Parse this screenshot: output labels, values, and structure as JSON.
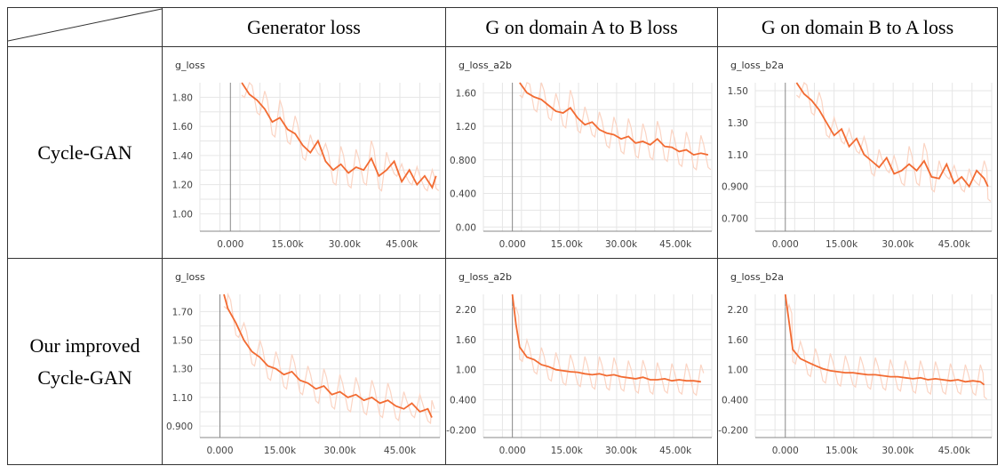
{
  "header": {
    "columns": [
      "Generator loss",
      "G on domain A to B loss",
      "G on domain B to A loss"
    ],
    "rows": [
      [
        "Cycle-GAN"
      ],
      [
        "Our improved",
        "Cycle-GAN"
      ]
    ]
  },
  "colors": {
    "line": "#f26b32",
    "raw": "#fbd4c3",
    "grid": "#e6e6e6",
    "axis": "#888888"
  },
  "chart_data": [
    {
      "type": "line",
      "row": 0,
      "col": 0,
      "title": "g_loss",
      "xticks": [
        "0.000",
        "15.00k",
        "30.00k",
        "45.00k"
      ],
      "xtick_values": [
        0,
        15000,
        30000,
        45000
      ],
      "yticks": [
        "1.80",
        "1.60",
        "1.40",
        "1.20",
        "1.00"
      ],
      "ytick_values": [
        1.8,
        1.6,
        1.4,
        1.2,
        1.0
      ],
      "xlim": [
        -8000,
        55000
      ],
      "ylim": [
        0.88,
        1.9
      ],
      "series": [
        {
          "x": [
            3000,
            5000,
            7000,
            9000,
            11000,
            13000,
            15000,
            17000,
            19000,
            21000,
            23000,
            25000,
            27000,
            29000,
            31000,
            33000,
            35000,
            37000,
            39000,
            41000,
            43000,
            45000,
            47000,
            49000,
            51000,
            53000,
            54000
          ],
          "y": [
            1.9,
            1.82,
            1.78,
            1.72,
            1.63,
            1.66,
            1.58,
            1.55,
            1.47,
            1.42,
            1.5,
            1.36,
            1.3,
            1.34,
            1.28,
            1.32,
            1.3,
            1.38,
            1.26,
            1.3,
            1.36,
            1.22,
            1.3,
            1.2,
            1.26,
            1.18,
            1.26
          ]
        }
      ]
    },
    {
      "type": "line",
      "row": 0,
      "col": 1,
      "title": "g_loss_a2b",
      "xticks": [
        "0.000",
        "15.00k",
        "30.00k",
        "45.00k"
      ],
      "xtick_values": [
        0,
        15000,
        30000,
        45000
      ],
      "yticks": [
        "1.60",
        "1.20",
        "0.800",
        "0.400",
        "0.00"
      ],
      "ytick_values": [
        1.6,
        1.2,
        0.8,
        0.4,
        0.0
      ],
      "xlim": [
        -8000,
        55000
      ],
      "ylim": [
        -0.05,
        1.72
      ],
      "series": [
        {
          "x": [
            2000,
            4000,
            6000,
            8000,
            10000,
            12000,
            14000,
            16000,
            18000,
            20000,
            22000,
            24000,
            26000,
            28000,
            30000,
            32000,
            34000,
            36000,
            38000,
            40000,
            42000,
            44000,
            46000,
            48000,
            50000,
            52000,
            54000
          ],
          "y": [
            1.72,
            1.6,
            1.55,
            1.52,
            1.45,
            1.38,
            1.36,
            1.42,
            1.3,
            1.22,
            1.25,
            1.16,
            1.12,
            1.1,
            1.05,
            1.08,
            1.0,
            1.02,
            0.98,
            1.05,
            0.96,
            0.95,
            0.9,
            0.92,
            0.86,
            0.88,
            0.86
          ]
        }
      ]
    },
    {
      "type": "line",
      "row": 0,
      "col": 2,
      "title": "g_loss_b2a",
      "xticks": [
        "0.000",
        "15.00k",
        "30.00k",
        "45.00k"
      ],
      "xtick_values": [
        0,
        15000,
        30000,
        45000
      ],
      "yticks": [
        "1.50",
        "1.30",
        "1.10",
        "0.900",
        "0.700"
      ],
      "ytick_values": [
        1.5,
        1.3,
        1.1,
        0.9,
        0.7
      ],
      "xlim": [
        -8000,
        55000
      ],
      "ylim": [
        0.62,
        1.55
      ],
      "series": [
        {
          "x": [
            3000,
            5000,
            7000,
            9000,
            11000,
            13000,
            15000,
            17000,
            19000,
            21000,
            23000,
            25000,
            27000,
            29000,
            31000,
            33000,
            35000,
            37000,
            39000,
            41000,
            43000,
            45000,
            47000,
            49000,
            51000,
            53000,
            54000
          ],
          "y": [
            1.55,
            1.48,
            1.44,
            1.38,
            1.3,
            1.22,
            1.26,
            1.15,
            1.2,
            1.1,
            1.06,
            1.02,
            1.08,
            0.98,
            1.0,
            1.04,
            1.0,
            1.06,
            0.96,
            0.95,
            1.04,
            0.92,
            0.96,
            0.9,
            1.0,
            0.95,
            0.9
          ]
        }
      ]
    },
    {
      "type": "line",
      "row": 1,
      "col": 0,
      "title": "g_loss",
      "xticks": [
        "0.000",
        "15.00k",
        "30.00k",
        "45.00k"
      ],
      "xtick_values": [
        0,
        15000,
        30000,
        45000
      ],
      "yticks": [
        "1.70",
        "1.50",
        "1.30",
        "1.10",
        "0.900"
      ],
      "ytick_values": [
        1.7,
        1.5,
        1.3,
        1.1,
        0.9
      ],
      "xlim": [
        -5000,
        55000
      ],
      "ylim": [
        0.82,
        1.82
      ],
      "series": [
        {
          "x": [
            1000,
            2000,
            4000,
            6000,
            8000,
            10000,
            12000,
            14000,
            16000,
            18000,
            20000,
            22000,
            24000,
            26000,
            28000,
            30000,
            32000,
            34000,
            36000,
            38000,
            40000,
            42000,
            44000,
            46000,
            48000,
            50000,
            52000,
            53000
          ],
          "y": [
            1.82,
            1.72,
            1.62,
            1.5,
            1.42,
            1.38,
            1.32,
            1.3,
            1.26,
            1.28,
            1.22,
            1.2,
            1.16,
            1.18,
            1.12,
            1.14,
            1.1,
            1.12,
            1.08,
            1.1,
            1.06,
            1.08,
            1.04,
            1.02,
            1.06,
            1.0,
            1.02,
            0.96
          ]
        }
      ]
    },
    {
      "type": "line",
      "row": 1,
      "col": 1,
      "title": "g_loss_a2b",
      "xticks": [
        "0.000",
        "15.00k",
        "30.00k",
        "45.00k"
      ],
      "xtick_values": [
        0,
        15000,
        30000,
        45000
      ],
      "yticks": [
        "2.20",
        "1.60",
        "1.00",
        "0.400",
        "-0.200"
      ],
      "ytick_values": [
        2.2,
        1.6,
        1.0,
        0.4,
        -0.2
      ],
      "xlim": [
        -8000,
        55000
      ],
      "ylim": [
        -0.35,
        2.5
      ],
      "series": [
        {
          "x": [
            0,
            1000,
            2000,
            4000,
            6000,
            8000,
            10000,
            12000,
            14000,
            16000,
            18000,
            20000,
            22000,
            24000,
            26000,
            28000,
            30000,
            32000,
            34000,
            36000,
            38000,
            40000,
            42000,
            44000,
            46000,
            48000,
            50000,
            52000
          ],
          "y": [
            2.5,
            1.9,
            1.45,
            1.25,
            1.2,
            1.1,
            1.06,
            1.0,
            0.98,
            0.96,
            0.95,
            0.92,
            0.9,
            0.92,
            0.88,
            0.9,
            0.86,
            0.84,
            0.82,
            0.85,
            0.8,
            0.8,
            0.82,
            0.78,
            0.8,
            0.78,
            0.78,
            0.76
          ]
        }
      ]
    },
    {
      "type": "line",
      "row": 1,
      "col": 2,
      "title": "g_loss_b2a",
      "xticks": [
        "0.000",
        "15.00k",
        "30.00k",
        "45.00k"
      ],
      "xtick_values": [
        0,
        15000,
        30000,
        45000
      ],
      "yticks": [
        "2.20",
        "1.60",
        "1.00",
        "0.400",
        "-0.200"
      ],
      "ytick_values": [
        2.2,
        1.6,
        1.0,
        0.4,
        -0.2
      ],
      "xlim": [
        -8000,
        55000
      ],
      "ylim": [
        -0.35,
        2.5
      ],
      "series": [
        {
          "x": [
            0,
            1000,
            2000,
            4000,
            6000,
            8000,
            10000,
            12000,
            14000,
            16000,
            18000,
            20000,
            22000,
            24000,
            26000,
            28000,
            30000,
            32000,
            34000,
            36000,
            38000,
            40000,
            42000,
            44000,
            46000,
            48000,
            50000,
            52000,
            53000
          ],
          "y": [
            2.5,
            1.95,
            1.4,
            1.22,
            1.15,
            1.08,
            1.02,
            0.98,
            0.96,
            0.94,
            0.94,
            0.92,
            0.9,
            0.9,
            0.88,
            0.86,
            0.86,
            0.84,
            0.82,
            0.84,
            0.8,
            0.82,
            0.8,
            0.78,
            0.8,
            0.76,
            0.78,
            0.76,
            0.7
          ]
        }
      ]
    }
  ]
}
